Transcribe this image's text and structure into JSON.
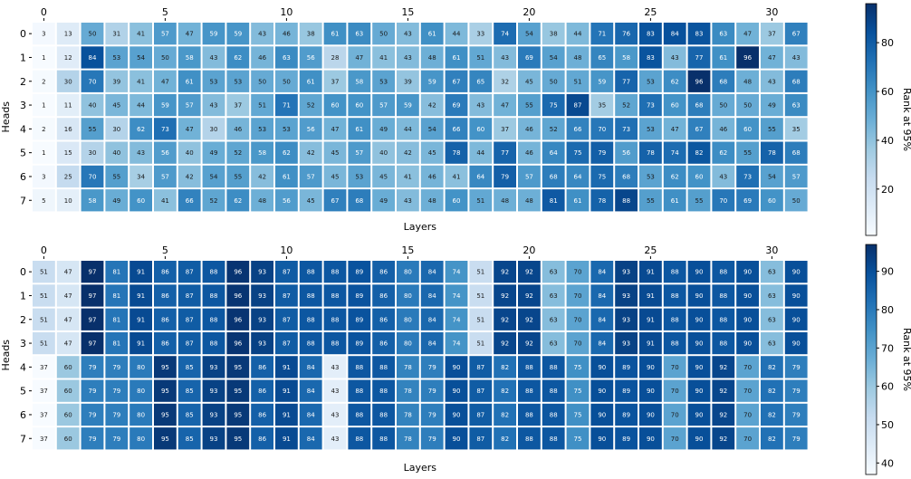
{
  "chart_data": [
    {
      "type": "heatmap",
      "xlabel": "Layers",
      "ylabel": "Heads",
      "colorbar_label": "Rank at 95%",
      "colorbar_ticks": [
        20,
        40,
        60,
        80
      ],
      "vmin": 1,
      "vmax": 96,
      "x_tick_labels": [
        "0",
        "5",
        "10",
        "15",
        "20",
        "25",
        "30"
      ],
      "x_tick_values": [
        0,
        5,
        10,
        15,
        20,
        25,
        30
      ],
      "y_tick_labels": [
        "0",
        "1",
        "2",
        "3",
        "4",
        "5",
        "6",
        "7"
      ],
      "colormap": "Blues",
      "values": [
        [
          3,
          13,
          50,
          31,
          41,
          57,
          47,
          59,
          59,
          43,
          46,
          38,
          61,
          63,
          50,
          43,
          61,
          44,
          33,
          74,
          54,
          38,
          44,
          71,
          76,
          83,
          84,
          83,
          63,
          47,
          37,
          67
        ],
        [
          1,
          12,
          84,
          53,
          54,
          50,
          58,
          43,
          62,
          46,
          63,
          56,
          28,
          47,
          41,
          43,
          48,
          61,
          51,
          43,
          69,
          54,
          48,
          65,
          58,
          83,
          43,
          77,
          61,
          96,
          47,
          43
        ],
        [
          2,
          30,
          70,
          39,
          41,
          47,
          61,
          53,
          53,
          50,
          50,
          61,
          37,
          58,
          53,
          39,
          59,
          67,
          65,
          32,
          45,
          50,
          51,
          59,
          77,
          53,
          62,
          96,
          68,
          48,
          43,
          68
        ],
        [
          1,
          11,
          40,
          45,
          44,
          59,
          57,
          43,
          37,
          51,
          71,
          52,
          60,
          60,
          57,
          59,
          42,
          69,
          43,
          47,
          55,
          75,
          87,
          35,
          52,
          73,
          60,
          68,
          50,
          50,
          49,
          63
        ],
        [
          2,
          16,
          55,
          30,
          62,
          73,
          47,
          30,
          46,
          53,
          53,
          56,
          47,
          61,
          49,
          44,
          54,
          66,
          60,
          37,
          46,
          52,
          66,
          70,
          73,
          53,
          47,
          67,
          46,
          60,
          55,
          35
        ],
        [
          1,
          15,
          30,
          40,
          43,
          56,
          40,
          49,
          52,
          58,
          62,
          42,
          45,
          57,
          40,
          42,
          45,
          78,
          44,
          77,
          46,
          64,
          75,
          79,
          56,
          78,
          74,
          82,
          62,
          55,
          78,
          68
        ],
        [
          3,
          25,
          70,
          55,
          34,
          57,
          42,
          54,
          55,
          42,
          61,
          57,
          45,
          53,
          45,
          41,
          46,
          41,
          64,
          79,
          57,
          68,
          64,
          75,
          68,
          53,
          62,
          60,
          43,
          73,
          54,
          57
        ],
        [
          5,
          10,
          58,
          49,
          60,
          41,
          66,
          52,
          62,
          48,
          56,
          45,
          67,
          68,
          49,
          43,
          48,
          60,
          51,
          48,
          48,
          81,
          61,
          78,
          88,
          55,
          61,
          55,
          70,
          69,
          60,
          50
        ]
      ]
    },
    {
      "type": "heatmap",
      "xlabel": "Layers",
      "ylabel": "Heads",
      "colorbar_label": "Rank at 95%",
      "colorbar_ticks": [
        40,
        50,
        60,
        70,
        80,
        90
      ],
      "vmin": 37,
      "vmax": 97,
      "x_tick_labels": [
        "0",
        "5",
        "10",
        "15",
        "20",
        "25",
        "30"
      ],
      "x_tick_values": [
        0,
        5,
        10,
        15,
        20,
        25,
        30
      ],
      "y_tick_labels": [
        "0",
        "1",
        "2",
        "3",
        "4",
        "5",
        "6",
        "7"
      ],
      "colormap": "Blues",
      "values": [
        [
          51,
          47,
          97,
          81,
          91,
          86,
          87,
          88,
          96,
          93,
          87,
          88,
          88,
          89,
          86,
          80,
          84,
          74,
          51,
          92,
          92,
          63,
          70,
          84,
          93,
          91,
          88,
          90,
          88,
          90,
          63,
          90
        ],
        [
          51,
          47,
          97,
          81,
          91,
          86,
          87,
          88,
          96,
          93,
          87,
          88,
          88,
          89,
          86,
          80,
          84,
          74,
          51,
          92,
          92,
          63,
          70,
          84,
          93,
          91,
          88,
          90,
          88,
          90,
          63,
          90
        ],
        [
          51,
          47,
          97,
          81,
          91,
          86,
          87,
          88,
          96,
          93,
          87,
          88,
          88,
          89,
          86,
          80,
          84,
          74,
          51,
          92,
          92,
          63,
          70,
          84,
          93,
          91,
          88,
          90,
          88,
          90,
          63,
          90
        ],
        [
          51,
          47,
          97,
          81,
          91,
          86,
          87,
          88,
          96,
          93,
          87,
          88,
          88,
          89,
          86,
          80,
          84,
          74,
          51,
          92,
          92,
          63,
          70,
          84,
          93,
          91,
          88,
          90,
          88,
          90,
          63,
          90
        ],
        [
          37,
          60,
          79,
          79,
          80,
          95,
          85,
          93,
          95,
          86,
          91,
          84,
          43,
          88,
          88,
          78,
          79,
          90,
          87,
          82,
          88,
          88,
          75,
          90,
          89,
          90,
          70,
          90,
          92,
          70,
          82,
          79
        ],
        [
          37,
          60,
          79,
          79,
          80,
          95,
          85,
          93,
          95,
          86,
          91,
          84,
          43,
          88,
          88,
          78,
          79,
          90,
          87,
          82,
          88,
          88,
          75,
          90,
          89,
          90,
          70,
          90,
          92,
          70,
          82,
          79
        ],
        [
          37,
          60,
          79,
          79,
          80,
          95,
          85,
          93,
          95,
          86,
          91,
          84,
          43,
          88,
          88,
          78,
          79,
          90,
          87,
          82,
          88,
          88,
          75,
          90,
          89,
          90,
          70,
          90,
          92,
          70,
          82,
          79
        ],
        [
          37,
          60,
          79,
          79,
          80,
          95,
          85,
          93,
          95,
          86,
          91,
          84,
          43,
          88,
          88,
          78,
          79,
          90,
          87,
          82,
          88,
          88,
          75,
          90,
          89,
          90,
          70,
          90,
          92,
          70,
          82,
          79
        ]
      ]
    }
  ]
}
